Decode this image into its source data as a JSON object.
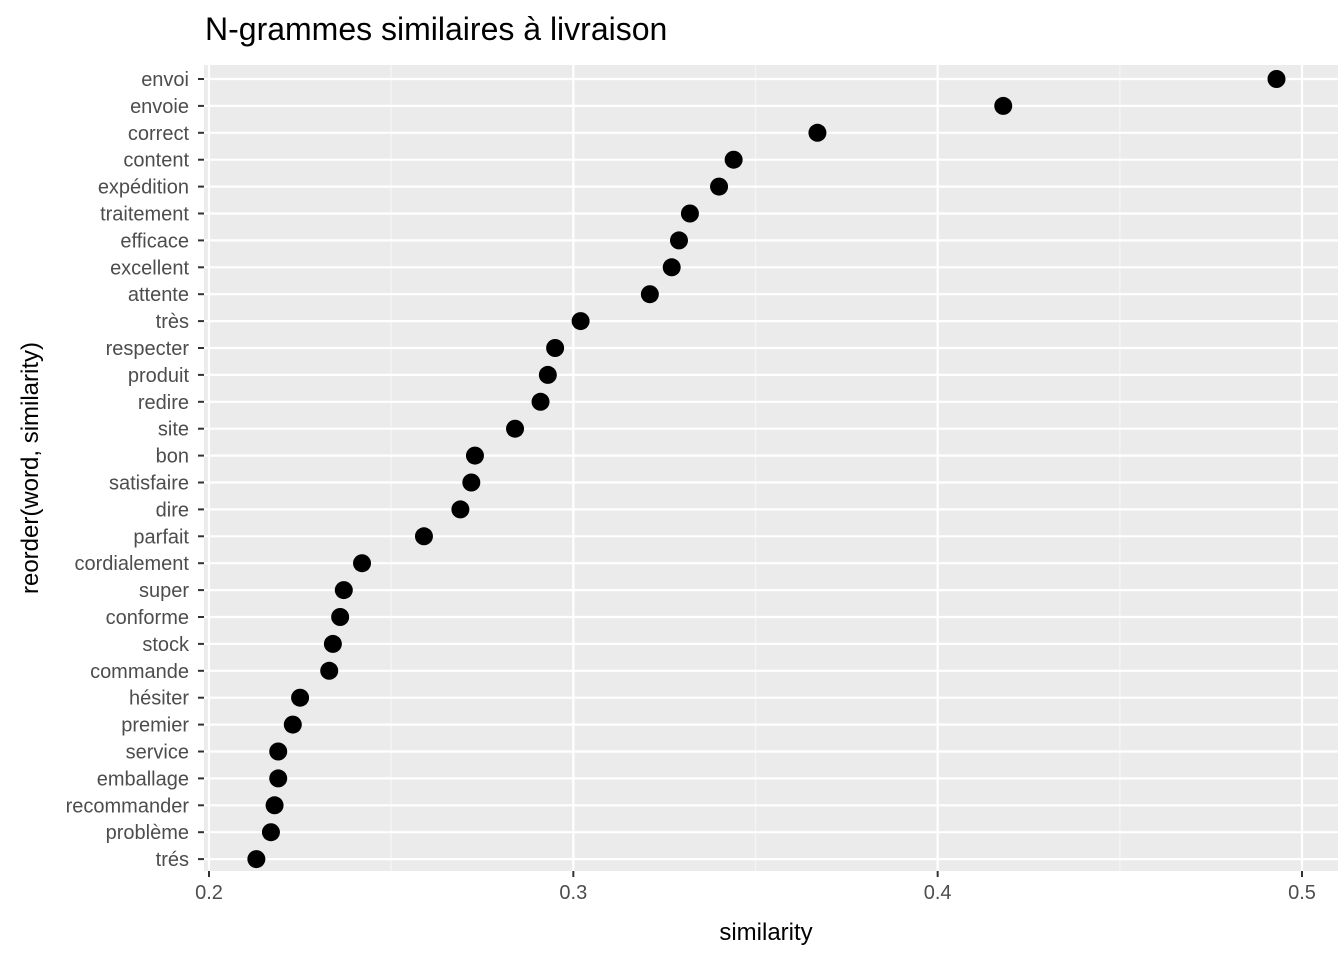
{
  "chart_data": {
    "type": "scatter",
    "title": "N-grammes similaires à livraison",
    "xlabel": "similarity",
    "ylabel": "reorder(word, similarity)",
    "xlim": [
      0.2,
      0.5
    ],
    "x_ticks": [
      "0.2",
      "0.3",
      "0.4",
      "0.5"
    ],
    "grid": true,
    "categories": [
      "envoi",
      "envoie",
      "correct",
      "content",
      "expédition",
      "traitement",
      "efficace",
      "excellent",
      "attente",
      "très",
      "respecter",
      "produit",
      "redire",
      "site",
      "bon",
      "satisfaire",
      "dire",
      "parfait",
      "cordialement",
      "super",
      "conforme",
      "stock",
      "commande",
      "hésiter",
      "premier",
      "service",
      "emballage",
      "recommander",
      "problème",
      "trés"
    ],
    "values": [
      0.493,
      0.418,
      0.367,
      0.344,
      0.34,
      0.332,
      0.329,
      0.327,
      0.321,
      0.302,
      0.295,
      0.293,
      0.291,
      0.284,
      0.273,
      0.272,
      0.269,
      0.259,
      0.242,
      0.237,
      0.236,
      0.234,
      0.233,
      0.225,
      0.223,
      0.219,
      0.219,
      0.218,
      0.217,
      0.213
    ]
  },
  "colors": {
    "panel": "#ebebeb",
    "grid_major": "#ffffff",
    "grid_minor": "#f5f5f5",
    "point": "#000000",
    "tick_text": "#4d4d4d",
    "tick_mark": "#333333"
  }
}
